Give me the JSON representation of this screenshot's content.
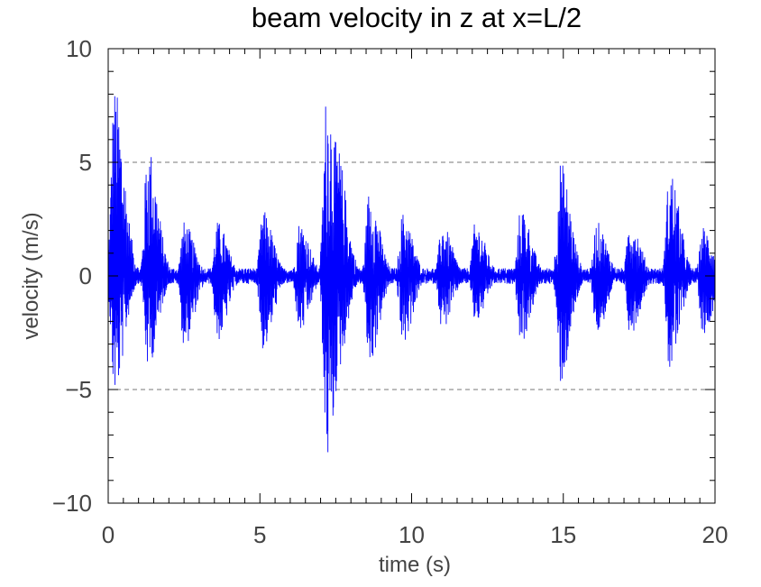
{
  "chart_data": {
    "type": "line",
    "title": "beam velocity in z at x=L/2",
    "xlabel": "time (s)",
    "ylabel": "velocity (m/s)",
    "xlim": [
      0,
      20
    ],
    "ylim": [
      -10,
      10
    ],
    "x_ticks": [
      0,
      5,
      10,
      15,
      20
    ],
    "y_ticks": [
      -10,
      -5,
      0,
      5,
      10
    ],
    "x_tick_labels": [
      "0",
      "5",
      "10",
      "15",
      "20"
    ],
    "y_tick_labels": [
      "−10",
      "−5",
      "0",
      "5",
      "10"
    ],
    "grid": "dashed horizontal lines at y = -5 and y = 5",
    "series": [
      {
        "color": "#0000ff",
        "envelope_peaks": [
          {
            "t": 0.2,
            "max": 8.4,
            "min": -5.3
          },
          {
            "t": 1.3,
            "max": 5.9,
            "min": -4.1
          },
          {
            "t": 2.5,
            "max": 2.4,
            "min": -3.2
          },
          {
            "t": 3.6,
            "max": 2.4,
            "min": -2.9
          },
          {
            "t": 5.1,
            "max": 2.9,
            "min": -3.3
          },
          {
            "t": 6.3,
            "max": 2.4,
            "min": -2.6
          },
          {
            "t": 7.2,
            "max": 8.3,
            "min": -8.3
          },
          {
            "t": 7.5,
            "max": 6.0,
            "min": -4.6
          },
          {
            "t": 8.6,
            "max": 3.8,
            "min": -4.0
          },
          {
            "t": 9.7,
            "max": 2.8,
            "min": -3.1
          },
          {
            "t": 11.0,
            "max": 2.3,
            "min": -2.4
          },
          {
            "t": 12.1,
            "max": 2.4,
            "min": -2.1
          },
          {
            "t": 13.6,
            "max": 3.1,
            "min": -3.0
          },
          {
            "t": 14.9,
            "max": 5.1,
            "min": -4.8
          },
          {
            "t": 16.1,
            "max": 2.4,
            "min": -2.6
          },
          {
            "t": 17.2,
            "max": 2.6,
            "min": -2.6
          },
          {
            "t": 18.5,
            "max": 4.8,
            "min": -4.2
          },
          {
            "t": 19.6,
            "max": 2.2,
            "min": -2.6
          }
        ]
      }
    ]
  }
}
